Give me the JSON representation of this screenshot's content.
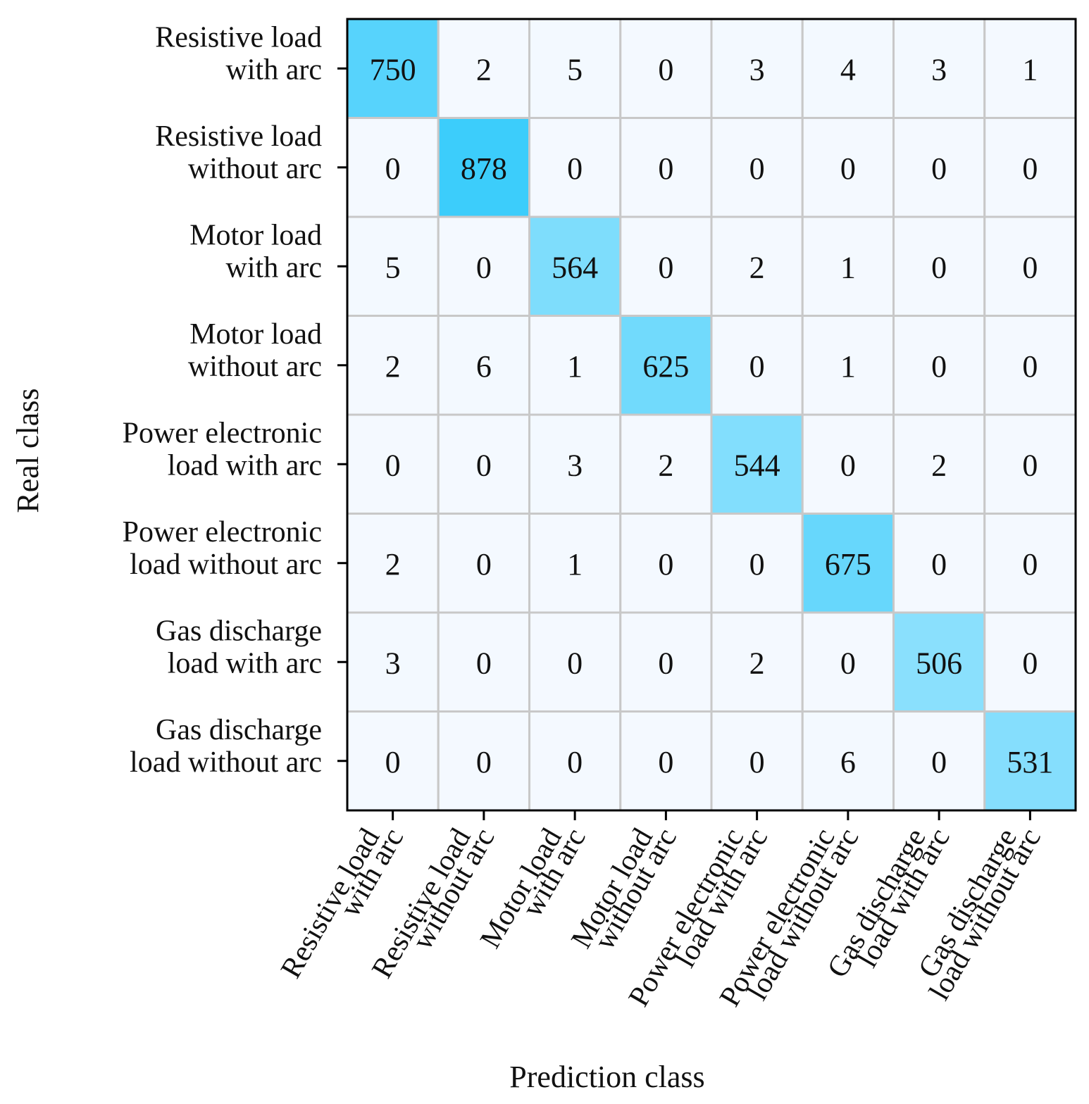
{
  "chart_data": {
    "type": "heatmap",
    "title": "",
    "xlabel": "Prediction class",
    "ylabel": "Real class",
    "colors": {
      "low": "#f4f9ff",
      "high": "#3ccdfb",
      "grid": "#c8c8c8",
      "frame": "#000000"
    },
    "row_labels": [
      [
        "Resistive load",
        "with arc"
      ],
      [
        "Resistive load",
        "without arc"
      ],
      [
        "Motor load",
        "with arc"
      ],
      [
        "Motor load",
        "without arc"
      ],
      [
        "Power electronic",
        "load with arc"
      ],
      [
        "Power electronic",
        "load without arc"
      ],
      [
        "Gas discharge",
        "load with arc"
      ],
      [
        "Gas discharge",
        "load without arc"
      ]
    ],
    "col_labels": [
      [
        "Resistive load",
        "with arc"
      ],
      [
        "Resistive load",
        "without arc"
      ],
      [
        "Motor load",
        "with arc"
      ],
      [
        "Motor load",
        "without arc"
      ],
      [
        "Power electronic",
        "load with arc"
      ],
      [
        "Power electronic",
        "load without arc"
      ],
      [
        "Gas discharge",
        "load with arc"
      ],
      [
        "Gas discharge",
        "load without arc"
      ]
    ],
    "matrix": [
      [
        750,
        2,
        5,
        0,
        3,
        4,
        3,
        1
      ],
      [
        0,
        878,
        0,
        0,
        0,
        0,
        0,
        0
      ],
      [
        5,
        0,
        564,
        0,
        2,
        1,
        0,
        0
      ],
      [
        2,
        6,
        1,
        625,
        0,
        1,
        0,
        0
      ],
      [
        0,
        0,
        3,
        2,
        544,
        0,
        2,
        0
      ],
      [
        2,
        0,
        1,
        0,
        0,
        675,
        0,
        0
      ],
      [
        3,
        0,
        0,
        0,
        2,
        0,
        506,
        0
      ],
      [
        0,
        0,
        0,
        0,
        0,
        6,
        0,
        531
      ]
    ]
  }
}
